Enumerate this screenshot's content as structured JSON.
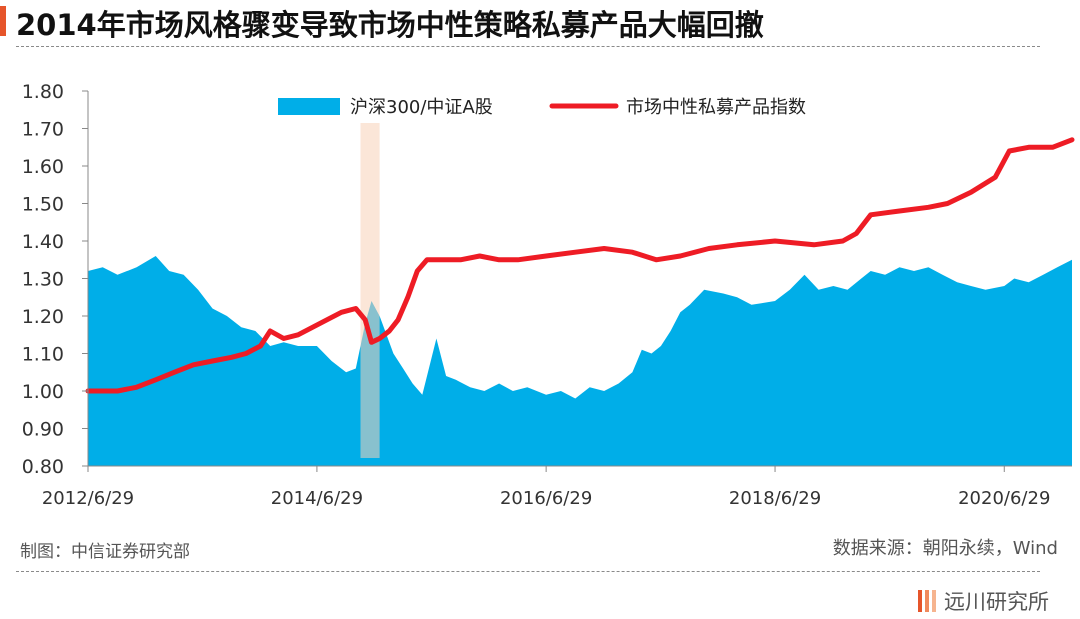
{
  "header": {
    "title": "2014年市场风格骤变导致市场中性策略私募产品大幅回撤"
  },
  "footer": {
    "maker": "制图：中信证券研究部",
    "source": "数据来源：朝阳永续，Wind",
    "brand": "远川研究所"
  },
  "colors": {
    "accent": "#e6552b",
    "area": "#00aee8",
    "line": "#ee1c25",
    "highlight": "#f8d2b8"
  },
  "chart_data": {
    "type": "area",
    "title": "2014年市场风格骤变导致市场中性策略私募产品大幅回撤",
    "xlabel": "",
    "ylabel": "",
    "ylim": [
      0.8,
      1.8
    ],
    "yticks": [
      "1.80",
      "1.70",
      "1.60",
      "1.50",
      "1.40",
      "1.30",
      "1.20",
      "1.10",
      "1.00",
      "0.90",
      "0.80"
    ],
    "xticks": [
      "2012/6/29",
      "2014/6/29",
      "2016/6/29",
      "2018/6/29",
      "2020/6/29"
    ],
    "xlim": [
      "2012/6/29",
      "2021/1/31"
    ],
    "grid": false,
    "legend_position": "top",
    "highlight_span": [
      "2014/11/15",
      "2015/1/15"
    ],
    "series": [
      {
        "name": "沪深300/中证A股",
        "kind": "area",
        "points": [
          [
            "2012/6/29",
            1.32
          ],
          [
            "2012/8/15",
            1.33
          ],
          [
            "2012/10/1",
            1.31
          ],
          [
            "2012/12/1",
            1.33
          ],
          [
            "2013/1/31",
            1.36
          ],
          [
            "2013/3/15",
            1.32
          ],
          [
            "2013/4/30",
            1.31
          ],
          [
            "2013/6/15",
            1.27
          ],
          [
            "2013/7/31",
            1.22
          ],
          [
            "2013/9/15",
            1.2
          ],
          [
            "2013/10/31",
            1.17
          ],
          [
            "2013/12/15",
            1.16
          ],
          [
            "2014/1/31",
            1.12
          ],
          [
            "2014/3/15",
            1.13
          ],
          [
            "2014/4/30",
            1.12
          ],
          [
            "2014/6/29",
            1.12
          ],
          [
            "2014/8/15",
            1.08
          ],
          [
            "2014/9/30",
            1.05
          ],
          [
            "2014/10/31",
            1.06
          ],
          [
            "2014/11/30",
            1.18
          ],
          [
            "2014/12/20",
            1.24
          ],
          [
            "2015/1/15",
            1.2
          ],
          [
            "2015/2/28",
            1.1
          ],
          [
            "2015/3/31",
            1.06
          ],
          [
            "2015/4/30",
            1.02
          ],
          [
            "2015/5/31",
            0.99
          ],
          [
            "2015/6/30",
            1.09
          ],
          [
            "2015/7/15",
            1.14
          ],
          [
            "2015/8/15",
            1.04
          ],
          [
            "2015/9/15",
            1.03
          ],
          [
            "2015/10/31",
            1.01
          ],
          [
            "2015/12/15",
            1.0
          ],
          [
            "2016/1/31",
            1.02
          ],
          [
            "2016/3/15",
            1.0
          ],
          [
            "2016/4/30",
            1.01
          ],
          [
            "2016/6/29",
            0.99
          ],
          [
            "2016/8/15",
            1.0
          ],
          [
            "2016/9/30",
            0.98
          ],
          [
            "2016/11/15",
            1.01
          ],
          [
            "2016/12/31",
            1.0
          ],
          [
            "2017/2/15",
            1.02
          ],
          [
            "2017/3/31",
            1.05
          ],
          [
            "2017/4/30",
            1.11
          ],
          [
            "2017/5/31",
            1.1
          ],
          [
            "2017/6/30",
            1.12
          ],
          [
            "2017/7/31",
            1.16
          ],
          [
            "2017/8/31",
            1.21
          ],
          [
            "2017/9/30",
            1.23
          ],
          [
            "2017/11/15",
            1.27
          ],
          [
            "2018/1/15",
            1.26
          ],
          [
            "2018/2/28",
            1.25
          ],
          [
            "2018/4/15",
            1.23
          ],
          [
            "2018/6/29",
            1.24
          ],
          [
            "2018/8/15",
            1.27
          ],
          [
            "2018/10/1",
            1.31
          ],
          [
            "2018/11/15",
            1.27
          ],
          [
            "2019/1/1",
            1.28
          ],
          [
            "2019/2/15",
            1.27
          ],
          [
            "2019/3/31",
            1.3
          ],
          [
            "2019/4/30",
            1.32
          ],
          [
            "2019/6/15",
            1.31
          ],
          [
            "2019/7/31",
            1.33
          ],
          [
            "2019/9/15",
            1.32
          ],
          [
            "2019/10/31",
            1.33
          ],
          [
            "2019/12/15",
            1.31
          ],
          [
            "2020/1/31",
            1.29
          ],
          [
            "2020/3/15",
            1.28
          ],
          [
            "2020/4/30",
            1.27
          ],
          [
            "2020/6/29",
            1.28
          ],
          [
            "2020/7/31",
            1.3
          ],
          [
            "2020/9/15",
            1.29
          ],
          [
            "2020/10/31",
            1.31
          ],
          [
            "2020/12/15",
            1.33
          ],
          [
            "2021/1/31",
            1.35
          ]
        ]
      },
      {
        "name": "市场中性私募产品指数",
        "kind": "line",
        "points": [
          [
            "2012/6/29",
            1.0
          ],
          [
            "2012/8/15",
            1.0
          ],
          [
            "2012/10/1",
            1.0
          ],
          [
            "2012/11/30",
            1.01
          ],
          [
            "2013/1/31",
            1.03
          ],
          [
            "2013/3/31",
            1.05
          ],
          [
            "2013/5/31",
            1.07
          ],
          [
            "2013/7/31",
            1.08
          ],
          [
            "2013/9/30",
            1.09
          ],
          [
            "2013/11/15",
            1.1
          ],
          [
            "2013/12/31",
            1.12
          ],
          [
            "2014/1/31",
            1.16
          ],
          [
            "2014/3/15",
            1.14
          ],
          [
            "2014/4/30",
            1.15
          ],
          [
            "2014/6/15",
            1.17
          ],
          [
            "2014/7/31",
            1.19
          ],
          [
            "2014/9/15",
            1.21
          ],
          [
            "2014/10/31",
            1.22
          ],
          [
            "2014/11/30",
            1.19
          ],
          [
            "2014/12/20",
            1.13
          ],
          [
            "2015/1/15",
            1.14
          ],
          [
            "2015/2/15",
            1.16
          ],
          [
            "2015/3/15",
            1.19
          ],
          [
            "2015/4/15",
            1.25
          ],
          [
            "2015/5/15",
            1.32
          ],
          [
            "2015/6/15",
            1.35
          ],
          [
            "2015/7/31",
            1.35
          ],
          [
            "2015/9/30",
            1.35
          ],
          [
            "2015/11/30",
            1.36
          ],
          [
            "2016/1/31",
            1.35
          ],
          [
            "2016/3/31",
            1.35
          ],
          [
            "2016/6/29",
            1.36
          ],
          [
            "2016/9/30",
            1.37
          ],
          [
            "2016/12/31",
            1.38
          ],
          [
            "2017/3/31",
            1.37
          ],
          [
            "2017/6/15",
            1.35
          ],
          [
            "2017/8/31",
            1.36
          ],
          [
            "2017/11/30",
            1.38
          ],
          [
            "2018/2/28",
            1.39
          ],
          [
            "2018/6/29",
            1.4
          ],
          [
            "2018/10/31",
            1.39
          ],
          [
            "2019/1/31",
            1.4
          ],
          [
            "2019/3/15",
            1.42
          ],
          [
            "2019/4/30",
            1.47
          ],
          [
            "2019/7/31",
            1.48
          ],
          [
            "2019/10/31",
            1.49
          ],
          [
            "2019/12/31",
            1.5
          ],
          [
            "2020/3/15",
            1.53
          ],
          [
            "2020/5/31",
            1.57
          ],
          [
            "2020/7/15",
            1.64
          ],
          [
            "2020/9/15",
            1.65
          ],
          [
            "2020/11/30",
            1.65
          ],
          [
            "2021/1/31",
            1.67
          ]
        ]
      }
    ]
  }
}
